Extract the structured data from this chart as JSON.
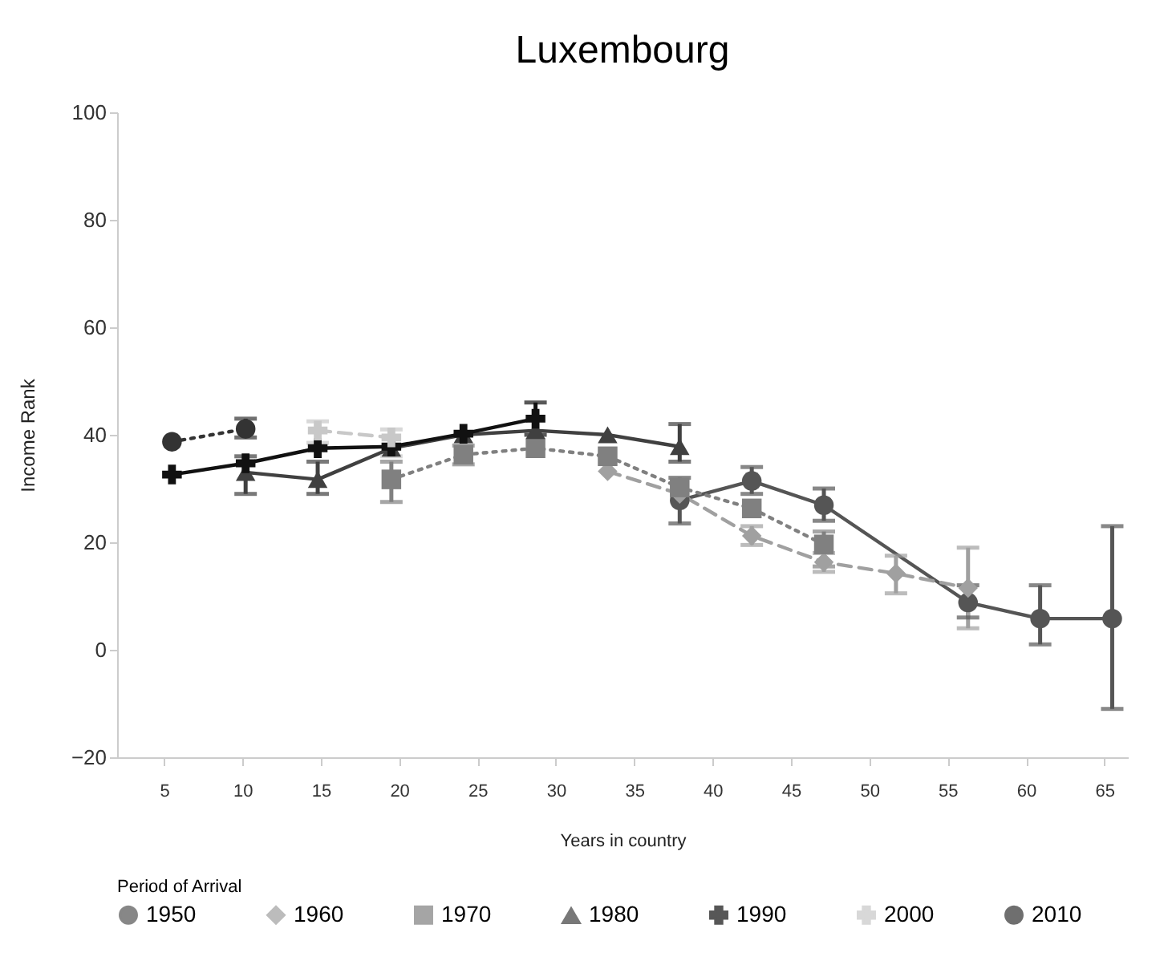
{
  "chart_data": {
    "type": "line",
    "title": "Luxembourg",
    "xlabel": "Years in country",
    "ylabel": "Income Rank",
    "legend_title": "Period of Arrival",
    "legend": "bottom",
    "grid": false,
    "xlim": [
      2,
      66.5
    ],
    "xticks": [
      5,
      10,
      15,
      20,
      25,
      30,
      35,
      40,
      45,
      50,
      55,
      60,
      65
    ],
    "ylim": [
      -20,
      100
    ],
    "yticks": [
      -20,
      0,
      20,
      40,
      60,
      80,
      100
    ],
    "series": [
      {
        "name": "1950",
        "color": "#555555",
        "marker": "circle",
        "line_style": "solid",
        "x": [
          37.9,
          42.5,
          47.1,
          56.3,
          60.9,
          65.5
        ],
        "values": [
          27.8,
          31.4,
          26.9,
          8.8,
          5.8,
          5.8
        ],
        "errors": [
          [
            23.5,
            32
          ],
          [
            29,
            34
          ],
          [
            24,
            30
          ],
          [
            6,
            12
          ],
          [
            1,
            12
          ],
          [
            -11,
            23
          ]
        ]
      },
      {
        "name": "1960",
        "color": "#a0a0a0",
        "marker": "diamond",
        "line_style": "dashed",
        "x": [
          33.3,
          37.9,
          42.5,
          47.1,
          51.7,
          56.3
        ],
        "values": [
          33.2,
          29,
          21.2,
          16.3,
          14.2,
          11.5
        ],
        "errors": [
          null,
          null,
          [
            19.5,
            23
          ],
          [
            14.5,
            18
          ],
          [
            10.5,
            17.5
          ],
          [
            4,
            19
          ]
        ]
      },
      {
        "name": "1970",
        "color": "#808080",
        "marker": "square",
        "line_style": "dotted",
        "x": [
          19.5,
          24.1,
          28.7,
          33.3,
          37.9,
          42.5,
          47.1
        ],
        "values": [
          31.7,
          36.3,
          37.5,
          36,
          30.2,
          26.3,
          19.6
        ],
        "errors": [
          [
            27.5,
            35
          ],
          [
            34.5,
            38
          ],
          null,
          null,
          null,
          null,
          [
            15.5,
            22
          ]
        ]
      },
      {
        "name": "1980",
        "color": "#404040",
        "marker": "triangle",
        "line_style": "solid",
        "x": [
          10.2,
          14.8,
          19.5,
          24.1,
          28.7,
          33.3,
          37.9
        ],
        "values": [
          33,
          31.7,
          37.5,
          40,
          40.8,
          40,
          37.8
        ],
        "errors": [
          [
            29,
            36
          ],
          [
            29,
            35
          ],
          null,
          null,
          null,
          null,
          [
            35,
            42
          ]
        ]
      },
      {
        "name": "1990",
        "color": "#111111",
        "marker": "cross",
        "line_style": "solid",
        "x": [
          5.5,
          10.2,
          14.8,
          19.5,
          24.1,
          28.7
        ],
        "values": [
          32.6,
          34.7,
          37.5,
          37.8,
          40.2,
          43
        ],
        "errors": [
          null,
          null,
          null,
          null,
          null,
          [
            40,
            46
          ]
        ]
      },
      {
        "name": "2000",
        "color": "#c8c8c8",
        "marker": "cross",
        "line_style": "dashed",
        "x": [
          14.8,
          19.5
        ],
        "values": [
          40.8,
          39.5
        ],
        "errors": [
          [
            38.5,
            42.5
          ],
          [
            36,
            41
          ]
        ]
      },
      {
        "name": "2010",
        "color": "#333333",
        "marker": "circle",
        "line_style": "dotted",
        "x": [
          5.5,
          10.2
        ],
        "values": [
          38.7,
          41.1
        ],
        "errors": [
          null,
          [
            39.5,
            43
          ]
        ]
      }
    ]
  }
}
